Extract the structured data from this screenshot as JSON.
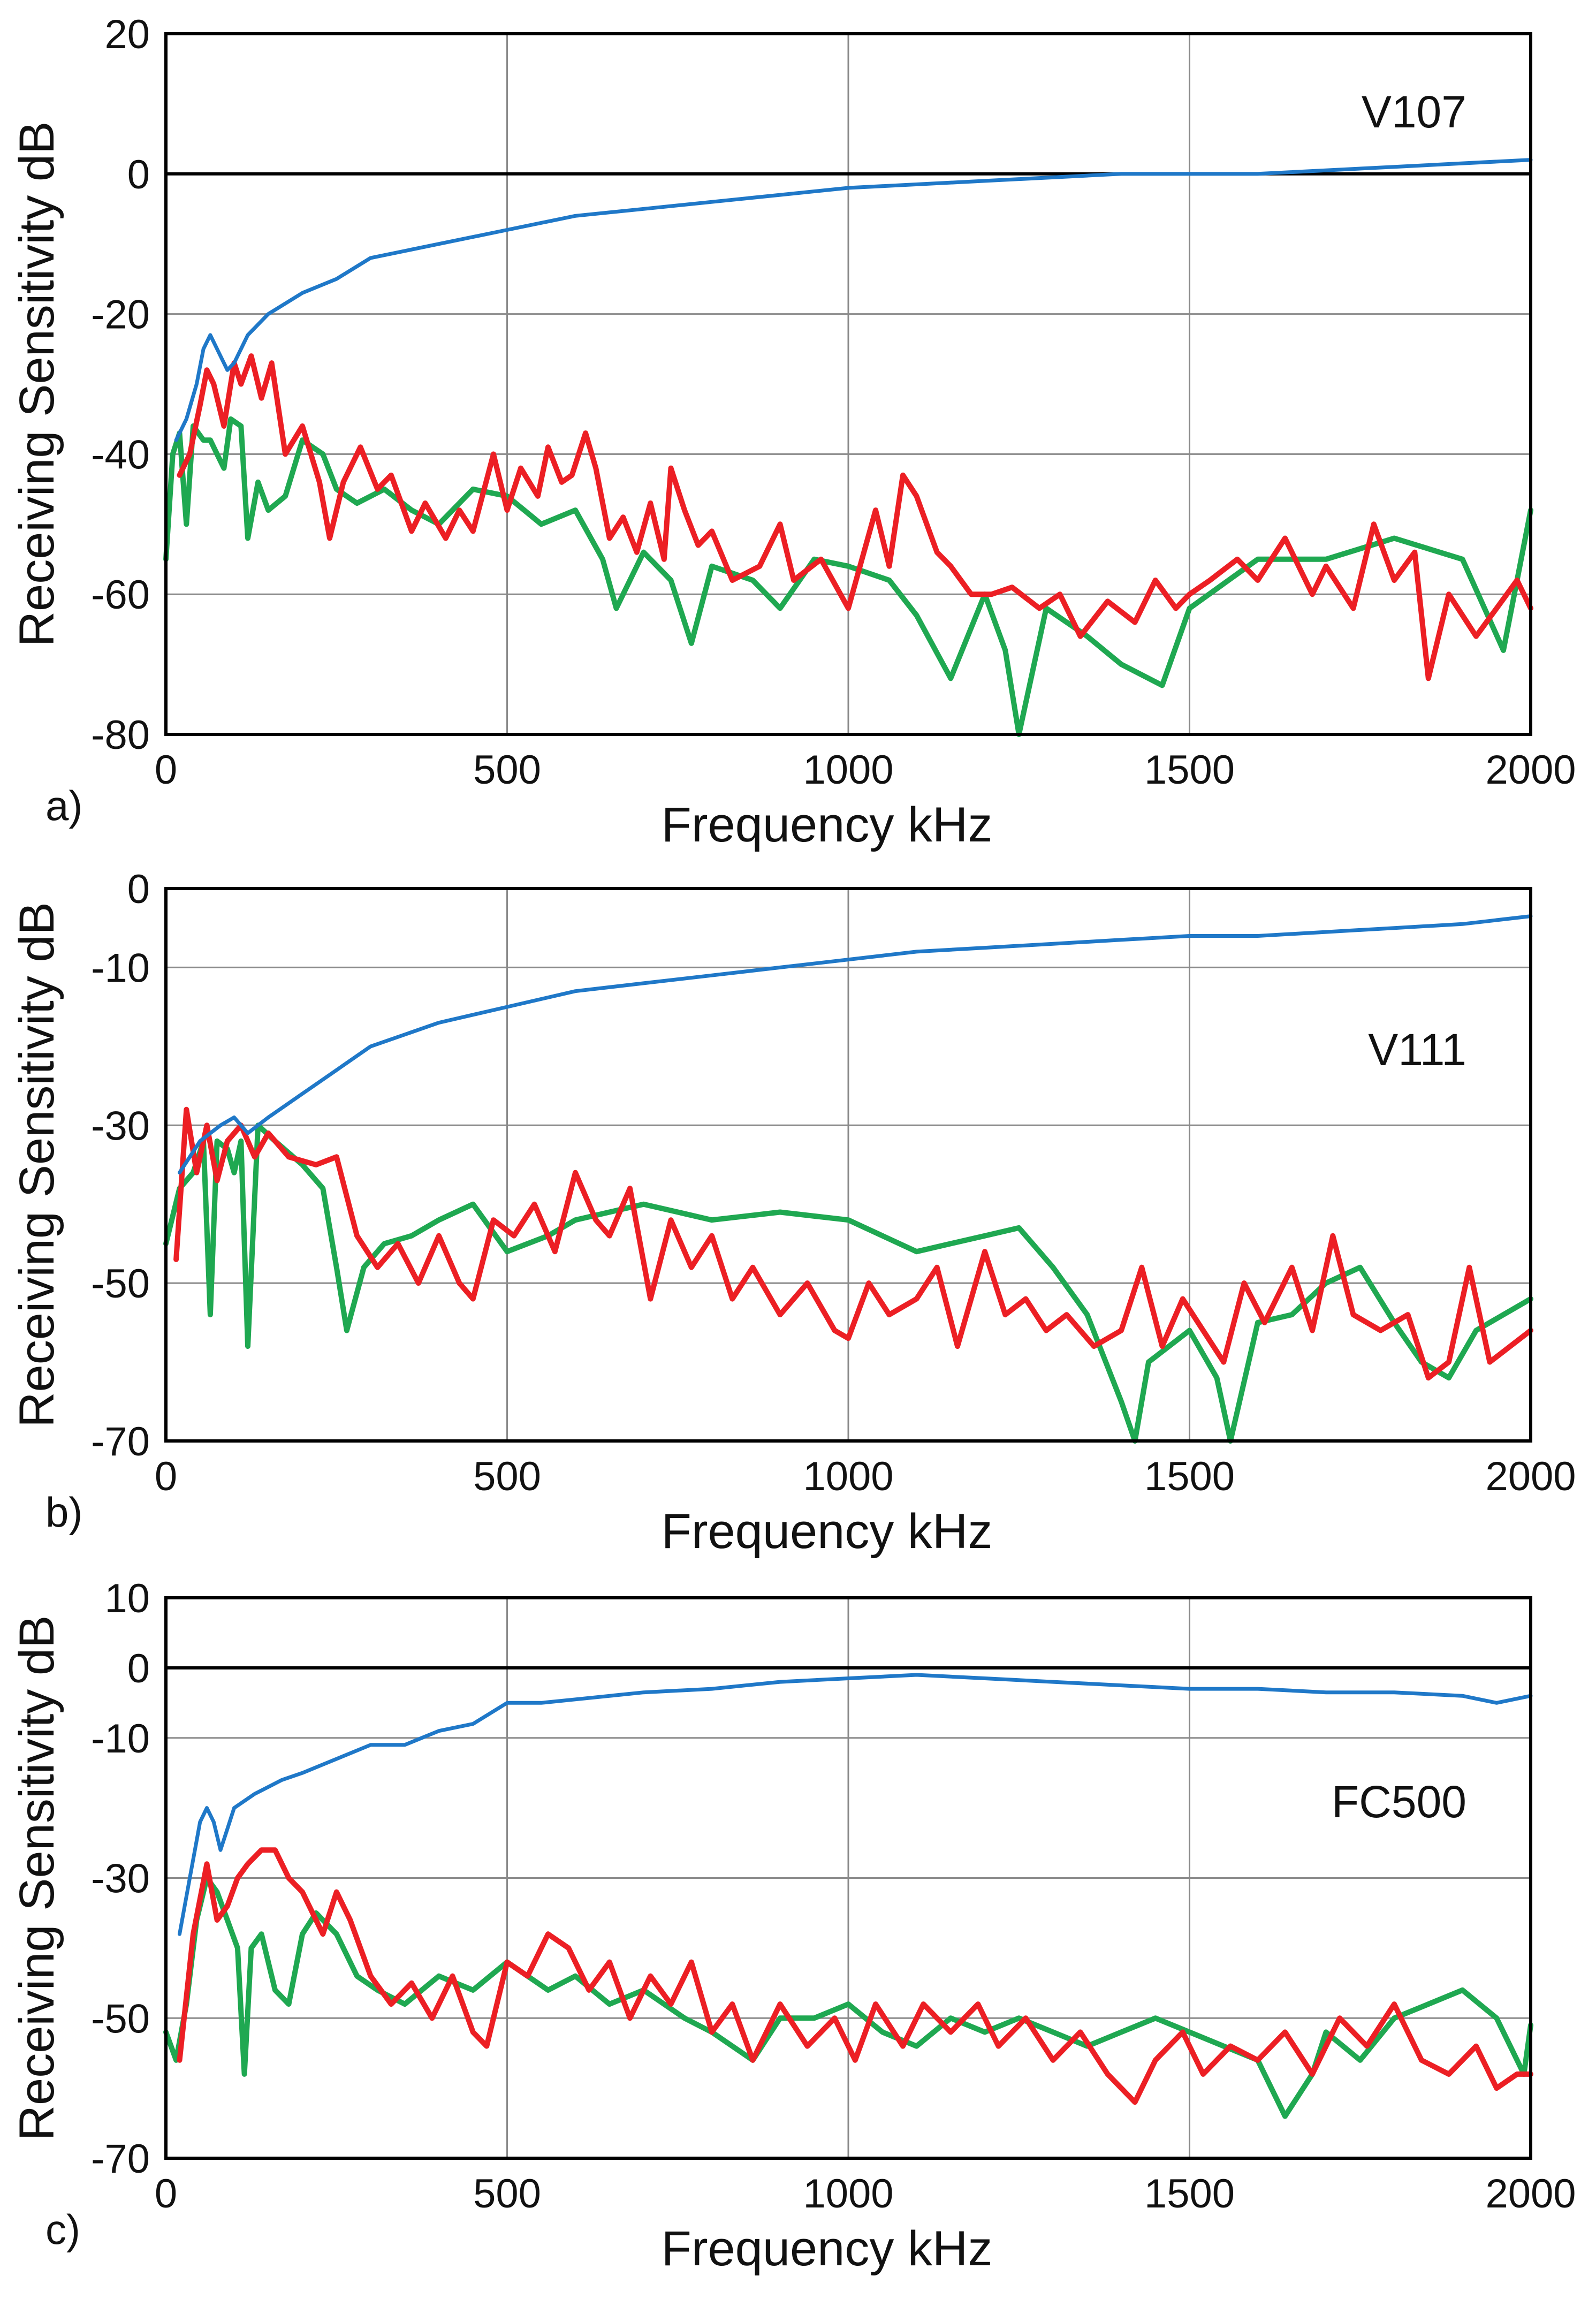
{
  "chart_data": [
    {
      "type": "line",
      "panel_label": "a)",
      "annotation": "V107",
      "xlabel": "Frequency  kHz",
      "ylabel": "Receiving Sensitivity  dB",
      "xlim": [
        0,
        2000
      ],
      "ylim": [
        -80,
        20
      ],
      "xticks": [
        0,
        500,
        1000,
        1500,
        2000
      ],
      "yticks": [
        20,
        0,
        -20,
        -40,
        -60,
        -80
      ],
      "ytick_labels": [
        "20",
        "0",
        "-20",
        "-40",
        "-60",
        "-80"
      ],
      "zero_line": true,
      "grid": true,
      "series": [
        {
          "name": "blue",
          "color": "#1f78c8",
          "x": [
            15,
            30,
            45,
            55,
            65,
            80,
            90,
            100,
            120,
            150,
            200,
            250,
            300,
            400,
            500,
            600,
            700,
            800,
            900,
            1000,
            1200,
            1400,
            1500,
            1600,
            1800,
            2000
          ],
          "y": [
            -38,
            -35,
            -30,
            -25,
            -23,
            -26,
            -28,
            -27,
            -23,
            -20,
            -17,
            -15,
            -12,
            -10,
            -8,
            -6,
            -5,
            -4,
            -3,
            -2,
            -1,
            0,
            0,
            0,
            1,
            2
          ]
        },
        {
          "name": "green",
          "color": "#1fa851",
          "x": [
            0,
            10,
            20,
            30,
            40,
            55,
            65,
            75,
            85,
            95,
            110,
            120,
            135,
            150,
            175,
            200,
            230,
            250,
            280,
            320,
            360,
            400,
            450,
            500,
            550,
            600,
            640,
            660,
            700,
            740,
            770,
            800,
            860,
            900,
            950,
            1000,
            1060,
            1100,
            1150,
            1200,
            1230,
            1250,
            1290,
            1350,
            1400,
            1460,
            1500,
            1600,
            1700,
            1800,
            1900,
            1960,
            2000
          ],
          "y": [
            -55,
            -40,
            -37,
            -50,
            -36,
            -38,
            -38,
            -40,
            -42,
            -35,
            -36,
            -52,
            -44,
            -48,
            -46,
            -38,
            -40,
            -45,
            -47,
            -45,
            -48,
            -50,
            -45,
            -46,
            -50,
            -48,
            -55,
            -62,
            -54,
            -58,
            -67,
            -56,
            -58,
            -62,
            -55,
            -56,
            -58,
            -63,
            -72,
            -60,
            -68,
            -80,
            -62,
            -66,
            -70,
            -73,
            -62,
            -55,
            -55,
            -52,
            -55,
            -68,
            -48
          ]
        },
        {
          "name": "red",
          "color": "#ec1f24",
          "x": [
            20,
            35,
            50,
            60,
            70,
            85,
            100,
            110,
            125,
            140,
            155,
            175,
            200,
            225,
            240,
            260,
            285,
            310,
            330,
            360,
            380,
            410,
            430,
            450,
            480,
            500,
            520,
            545,
            560,
            580,
            595,
            615,
            630,
            650,
            670,
            690,
            710,
            730,
            740,
            760,
            780,
            800,
            830,
            870,
            900,
            920,
            960,
            1000,
            1040,
            1060,
            1080,
            1100,
            1130,
            1150,
            1180,
            1210,
            1240,
            1280,
            1310,
            1340,
            1380,
            1420,
            1450,
            1480,
            1500,
            1530,
            1570,
            1600,
            1640,
            1680,
            1700,
            1740,
            1770,
            1800,
            1830,
            1850,
            1880,
            1920,
            1950,
            1980,
            2000
          ],
          "y": [
            -43,
            -40,
            -33,
            -28,
            -30,
            -36,
            -27,
            -30,
            -26,
            -32,
            -27,
            -40,
            -36,
            -44,
            -52,
            -44,
            -39,
            -45,
            -43,
            -51,
            -47,
            -52,
            -48,
            -51,
            -40,
            -48,
            -42,
            -46,
            -39,
            -44,
            -43,
            -37,
            -42,
            -52,
            -49,
            -54,
            -47,
            -55,
            -42,
            -48,
            -53,
            -51,
            -58,
            -56,
            -50,
            -58,
            -55,
            -62,
            -48,
            -56,
            -43,
            -46,
            -54,
            -56,
            -60,
            -60,
            -59,
            -62,
            -60,
            -66,
            -61,
            -64,
            -58,
            -62,
            -60,
            -58,
            -55,
            -58,
            -52,
            -60,
            -56,
            -62,
            -50,
            -58,
            -54,
            -72,
            -60,
            -66,
            -62,
            -58,
            -62
          ]
        }
      ]
    },
    {
      "type": "line",
      "panel_label": "b)",
      "annotation": "V111",
      "xlabel": "Frequency  kHz",
      "ylabel": "Receiving Sensitivity  dB",
      "xlim": [
        0,
        2000
      ],
      "ylim": [
        -70,
        0
      ],
      "xticks": [
        0,
        500,
        1000,
        1500,
        2000
      ],
      "yticks": [
        0,
        -10,
        -30,
        -50,
        -70
      ],
      "ytick_labels": [
        "0",
        "-10",
        "-30",
        "-50",
        "-70"
      ],
      "zero_line": false,
      "grid": true,
      "series": [
        {
          "name": "blue",
          "color": "#1f78c8",
          "x": [
            20,
            50,
            80,
            100,
            120,
            150,
            200,
            250,
            300,
            400,
            500,
            600,
            700,
            800,
            900,
            1000,
            1100,
            1200,
            1300,
            1400,
            1500,
            1600,
            1700,
            1800,
            1900,
            2000
          ],
          "y": [
            -36,
            -32,
            -30,
            -29,
            -31,
            -29,
            -26,
            -23,
            -20,
            -17,
            -15,
            -13,
            -12,
            -11,
            -10,
            -9,
            -8,
            -7.5,
            -7,
            -6.5,
            -6,
            -6,
            -5.5,
            -5,
            -4.5,
            -3.5
          ]
        },
        {
          "name": "green",
          "color": "#1fa851",
          "x": [
            0,
            20,
            40,
            55,
            65,
            75,
            90,
            100,
            110,
            120,
            135,
            160,
            200,
            230,
            250,
            265,
            290,
            320,
            360,
            400,
            450,
            500,
            560,
            600,
            700,
            800,
            900,
            1000,
            1050,
            1100,
            1150,
            1200,
            1250,
            1300,
            1350,
            1400,
            1420,
            1440,
            1500,
            1540,
            1560,
            1600,
            1650,
            1700,
            1750,
            1800,
            1840,
            1880,
            1920,
            1960,
            2000
          ],
          "y": [
            -45,
            -38,
            -36,
            -32,
            -54,
            -32,
            -33,
            -36,
            -32,
            -58,
            -30,
            -32,
            -35,
            -38,
            -48,
            -56,
            -48,
            -45,
            -44,
            -42,
            -40,
            -46,
            -44,
            -42,
            -40,
            -42,
            -41,
            -42,
            -44,
            -46,
            -45,
            -44,
            -43,
            -48,
            -54,
            -65,
            -70,
            -60,
            -56,
            -62,
            -70,
            -55,
            -54,
            -50,
            -48,
            -55,
            -60,
            -62,
            -56,
            -54,
            -52
          ]
        },
        {
          "name": "red",
          "color": "#ec1f24",
          "x": [
            15,
            30,
            45,
            60,
            75,
            90,
            110,
            130,
            150,
            180,
            220,
            250,
            280,
            310,
            340,
            370,
            400,
            430,
            450,
            480,
            510,
            540,
            570,
            600,
            630,
            650,
            680,
            710,
            740,
            770,
            800,
            830,
            860,
            900,
            940,
            980,
            1000,
            1030,
            1060,
            1100,
            1130,
            1160,
            1200,
            1230,
            1260,
            1290,
            1320,
            1360,
            1400,
            1430,
            1460,
            1490,
            1520,
            1550,
            1580,
            1610,
            1650,
            1680,
            1710,
            1740,
            1780,
            1820,
            1850,
            1880,
            1910,
            1940,
            1970,
            2000
          ],
          "y": [
            -47,
            -28,
            -36,
            -30,
            -37,
            -32,
            -30,
            -34,
            -31,
            -34,
            -35,
            -34,
            -44,
            -48,
            -45,
            -50,
            -44,
            -50,
            -52,
            -42,
            -44,
            -40,
            -46,
            -36,
            -42,
            -44,
            -38,
            -52,
            -42,
            -48,
            -44,
            -52,
            -48,
            -54,
            -50,
            -56,
            -57,
            -50,
            -54,
            -52,
            -48,
            -58,
            -46,
            -54,
            -52,
            -56,
            -54,
            -58,
            -56,
            -48,
            -58,
            -52,
            -56,
            -60,
            -50,
            -55,
            -48,
            -56,
            -44,
            -54,
            -56,
            -54,
            -62,
            -60,
            -48,
            -60,
            -58,
            -56
          ]
        }
      ]
    },
    {
      "type": "line",
      "panel_label": "c)",
      "annotation": "FC500",
      "xlabel": "Frequency  kHz",
      "ylabel": "Receiving Sensitivity  dB",
      "xlim": [
        0,
        2000
      ],
      "ylim": [
        -70,
        10
      ],
      "xticks": [
        0,
        500,
        1000,
        1500,
        2000
      ],
      "yticks": [
        10,
        0,
        -10,
        -30,
        -50,
        -70
      ],
      "ytick_labels": [
        "10",
        "0",
        "-10",
        "-30",
        "-50",
        "-70"
      ],
      "zero_line": true,
      "grid": true,
      "series": [
        {
          "name": "blue",
          "color": "#1f78c8",
          "x": [
            20,
            35,
            50,
            60,
            70,
            80,
            90,
            100,
            130,
            170,
            200,
            250,
            300,
            350,
            400,
            450,
            500,
            550,
            600,
            700,
            800,
            900,
            1000,
            1100,
            1200,
            1300,
            1400,
            1500,
            1600,
            1700,
            1800,
            1900,
            1950,
            2000
          ],
          "y": [
            -38,
            -30,
            -22,
            -20,
            -22,
            -26,
            -23,
            -20,
            -18,
            -16,
            -15,
            -13,
            -11,
            -11,
            -9,
            -8,
            -5,
            -5,
            -4.5,
            -3.5,
            -3,
            -2,
            -1.5,
            -1,
            -1.5,
            -2,
            -2.5,
            -3,
            -3,
            -3.5,
            -3.5,
            -4,
            -5,
            -4
          ]
        },
        {
          "name": "green",
          "color": "#1fa851",
          "x": [
            0,
            15,
            30,
            45,
            60,
            75,
            90,
            105,
            115,
            125,
            140,
            160,
            180,
            200,
            220,
            250,
            280,
            310,
            350,
            400,
            450,
            500,
            560,
            600,
            650,
            700,
            760,
            800,
            860,
            900,
            950,
            1000,
            1050,
            1100,
            1150,
            1200,
            1250,
            1300,
            1350,
            1400,
            1450,
            1500,
            1550,
            1600,
            1640,
            1680,
            1700,
            1750,
            1800,
            1850,
            1900,
            1950,
            1990,
            2000
          ],
          "y": [
            -52,
            -56,
            -48,
            -36,
            -30,
            -32,
            -36,
            -40,
            -58,
            -40,
            -38,
            -46,
            -48,
            -38,
            -35,
            -38,
            -44,
            -46,
            -48,
            -44,
            -46,
            -42,
            -46,
            -44,
            -48,
            -46,
            -50,
            -52,
            -56,
            -50,
            -50,
            -48,
            -52,
            -54,
            -50,
            -52,
            -50,
            -52,
            -54,
            -52,
            -50,
            -52,
            -54,
            -56,
            -64,
            -58,
            -52,
            -56,
            -50,
            -48,
            -46,
            -50,
            -58,
            -51
          ]
        },
        {
          "name": "red",
          "color": "#ec1f24",
          "x": [
            20,
            40,
            60,
            75,
            90,
            105,
            120,
            140,
            160,
            180,
            200,
            230,
            250,
            270,
            300,
            330,
            360,
            390,
            420,
            450,
            470,
            500,
            530,
            560,
            590,
            620,
            650,
            680,
            710,
            740,
            770,
            800,
            830,
            860,
            900,
            940,
            980,
            1010,
            1040,
            1080,
            1110,
            1150,
            1190,
            1220,
            1260,
            1300,
            1340,
            1380,
            1420,
            1450,
            1490,
            1520,
            1560,
            1600,
            1640,
            1680,
            1720,
            1760,
            1800,
            1840,
            1880,
            1920,
            1950,
            1980,
            2000
          ],
          "y": [
            -56,
            -38,
            -28,
            -36,
            -34,
            -30,
            -28,
            -26,
            -26,
            -30,
            -32,
            -38,
            -32,
            -36,
            -44,
            -48,
            -45,
            -50,
            -44,
            -52,
            -54,
            -42,
            -44,
            -38,
            -40,
            -46,
            -42,
            -50,
            -44,
            -48,
            -42,
            -52,
            -48,
            -56,
            -48,
            -54,
            -50,
            -56,
            -48,
            -54,
            -48,
            -52,
            -48,
            -54,
            -50,
            -56,
            -52,
            -58,
            -62,
            -56,
            -52,
            -58,
            -54,
            -56,
            -52,
            -58,
            -50,
            -54,
            -48,
            -56,
            -58,
            -54,
            -60,
            -58,
            -58
          ]
        }
      ]
    }
  ]
}
